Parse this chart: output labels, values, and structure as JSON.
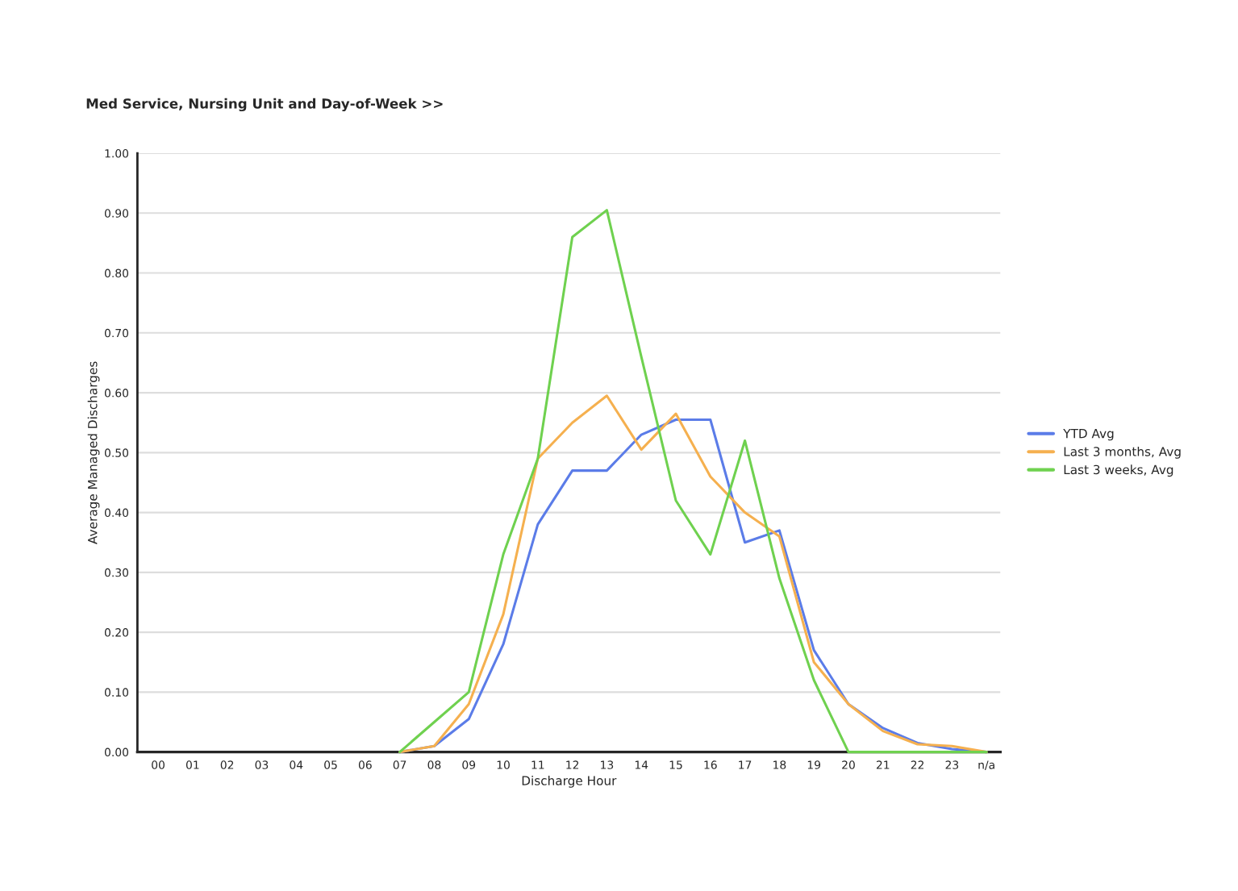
{
  "chart_data": {
    "type": "line",
    "title": "Med Service, Nursing Unit and Day-of-Week >>",
    "xlabel": "Discharge Hour",
    "ylabel": "Average Managed Discharges",
    "categories": [
      "00",
      "01",
      "02",
      "03",
      "04",
      "05",
      "06",
      "07",
      "08",
      "09",
      "10",
      "11",
      "12",
      "13",
      "14",
      "15",
      "16",
      "17",
      "18",
      "19",
      "20",
      "21",
      "22",
      "23",
      "n/a"
    ],
    "series": [
      {
        "name": "YTD Avg",
        "color": "#5b7ce8",
        "values": [
          null,
          null,
          null,
          null,
          null,
          null,
          null,
          0,
          0.01,
          0.055,
          0.18,
          0.38,
          0.47,
          0.47,
          0.53,
          0.555,
          0.555,
          0.35,
          0.37,
          0.17,
          0.08,
          0.04,
          0.015,
          0.005,
          0
        ]
      },
      {
        "name": "Last 3 months, Avg",
        "color": "#f5b04f",
        "values": [
          null,
          null,
          null,
          null,
          null,
          null,
          null,
          0,
          0.01,
          0.08,
          0.23,
          0.49,
          0.55,
          0.595,
          0.505,
          0.565,
          0.46,
          0.4,
          0.36,
          0.15,
          0.08,
          0.035,
          0.013,
          0.01,
          0
        ]
      },
      {
        "name": "Last 3 weeks, Avg",
        "color": "#6fd14f",
        "values": [
          null,
          null,
          null,
          null,
          null,
          null,
          null,
          0,
          0.05,
          0.1,
          0.33,
          0.49,
          0.86,
          0.905,
          0.66,
          0.42,
          0.33,
          0.52,
          0.29,
          0.12,
          0,
          0,
          0,
          0,
          0
        ]
      }
    ],
    "ylim": [
      0,
      1
    ],
    "yticks": [
      {
        "value": 0,
        "label": "0.00"
      },
      {
        "value": 0.1,
        "label": "0.10"
      },
      {
        "value": 0.2,
        "label": "0.20"
      },
      {
        "value": 0.3,
        "label": "0.30"
      },
      {
        "value": 0.4,
        "label": "0.40"
      },
      {
        "value": 0.5,
        "label": "0.50"
      },
      {
        "value": 0.6,
        "label": "0.60"
      },
      {
        "value": 0.7,
        "label": "0.70"
      },
      {
        "value": 0.8,
        "label": "0.80"
      },
      {
        "value": 0.9,
        "label": "0.90"
      },
      {
        "value": 1,
        "label": "1.00"
      }
    ],
    "grid": "y",
    "legend": "right",
    "marker": "none",
    "line_style": "solid"
  }
}
